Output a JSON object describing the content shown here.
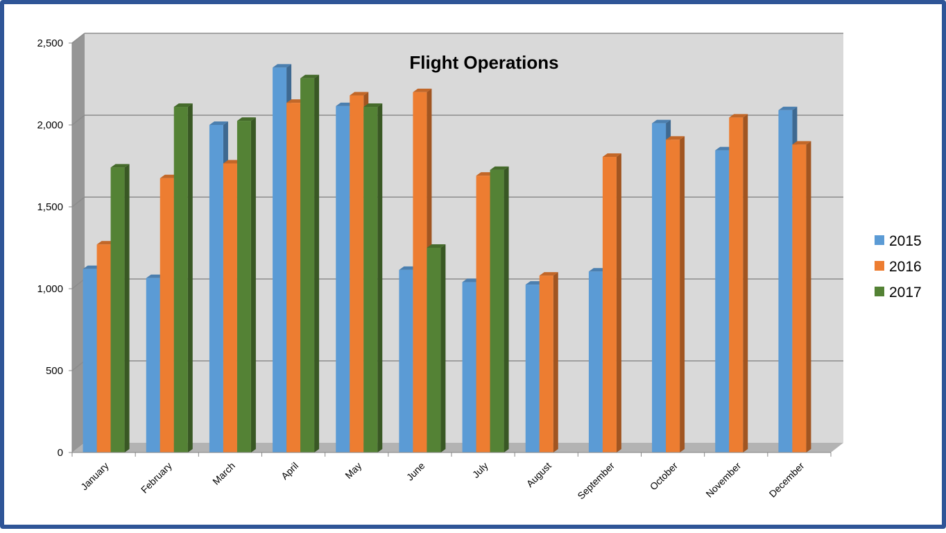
{
  "chart_data": {
    "type": "bar",
    "title": "Flight Operations",
    "categories": [
      "January",
      "February",
      "March",
      "April",
      "May",
      "June",
      "July",
      "August",
      "September",
      "October",
      "November",
      "December"
    ],
    "series": [
      {
        "name": "2015",
        "color": "#5b9bd5",
        "values": [
          1120,
          1065,
          2000,
          2350,
          2115,
          1115,
          1040,
          1025,
          1105,
          2010,
          1845,
          2090
        ]
      },
      {
        "name": "2016",
        "color": "#ed7d31",
        "values": [
          1270,
          1675,
          1765,
          2135,
          2180,
          2200,
          1690,
          1080,
          1805,
          1910,
          2045,
          1880
        ]
      },
      {
        "name": "2017",
        "color": "#548235",
        "values": [
          1740,
          2110,
          2025,
          2285,
          2110,
          1250,
          1725,
          null,
          null,
          null,
          null,
          null
        ]
      }
    ],
    "yticks": [
      "0",
      "500",
      "1,000",
      "1,500",
      "2,000",
      "2,500"
    ],
    "ylim": [
      0,
      2500
    ],
    "grid": true,
    "legend": "right"
  }
}
